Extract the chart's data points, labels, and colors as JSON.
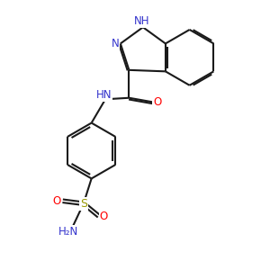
{
  "bg_color": "#FFFFFF",
  "bond_color": "#1a1a1a",
  "N_color": "#3333CC",
  "O_color": "#FF0000",
  "S_color": "#999900",
  "line_width": 1.5,
  "dbo": 0.06,
  "figsize": [
    3.0,
    3.0
  ],
  "dpi": 100,
  "xlim": [
    0,
    10
  ],
  "ylim": [
    0,
    10
  ]
}
